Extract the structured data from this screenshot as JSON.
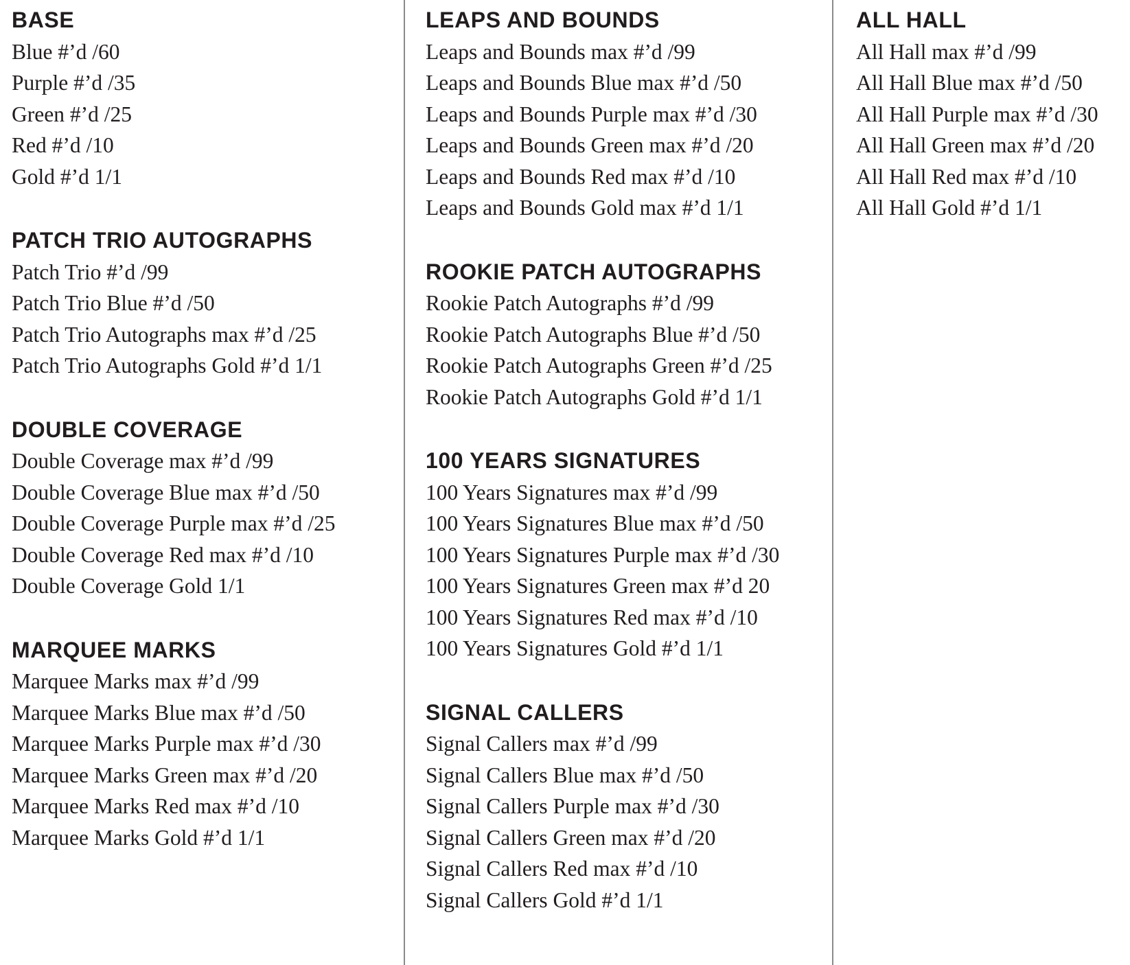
{
  "page": {
    "background": "#ffffff",
    "text_color": "#211d1e",
    "divider_color": "#8a8a8a"
  },
  "columns": [
    {
      "sections": [
        {
          "title": "BASE",
          "items": [
            "Blue #’d /60",
            "Purple #’d /35",
            "Green #’d /25",
            "Red #’d /10",
            "Gold #’d 1/1"
          ]
        },
        {
          "title": "PATCH TRIO AUTOGRAPHS",
          "items": [
            "Patch Trio #’d /99",
            "Patch Trio Blue #’d /50",
            "Patch Trio Autographs max #’d /25",
            "Patch Trio Autographs Gold #’d 1/1"
          ]
        },
        {
          "title": "DOUBLE COVERAGE",
          "items": [
            "Double Coverage max #’d /99",
            "Double Coverage Blue max #’d /50",
            "Double Coverage Purple max #’d /25",
            "Double Coverage Red max #’d /10",
            "Double Coverage Gold 1/1"
          ]
        },
        {
          "title": "MARQUEE MARKS",
          "items": [
            "Marquee Marks max #’d /99",
            "Marquee Marks Blue max #’d /50",
            "Marquee Marks Purple max #’d /30",
            "Marquee Marks Green max #’d /20",
            "Marquee Marks Red max #’d /10",
            "Marquee Marks Gold #’d 1/1"
          ]
        }
      ]
    },
    {
      "sections": [
        {
          "title": "LEAPS AND BOUNDS",
          "items": [
            "Leaps and Bounds max #’d /99",
            "Leaps and Bounds Blue max #’d /50",
            "Leaps and Bounds Purple max #’d /30",
            "Leaps and Bounds Green max #’d /20",
            "Leaps and Bounds Red max #’d /10",
            "Leaps and Bounds Gold max #’d 1/1"
          ]
        },
        {
          "title": "ROOKIE PATCH AUTOGRAPHS",
          "items": [
            "Rookie Patch Autographs #’d /99",
            "Rookie Patch Autographs Blue #’d /50",
            "Rookie Patch Autographs Green #’d /25",
            "Rookie Patch Autographs Gold #’d 1/1"
          ]
        },
        {
          "title": "100 YEARS SIGNATURES",
          "items": [
            "100 Years Signatures max #’d /99",
            "100 Years Signatures Blue max #’d /50",
            "100 Years Signatures Purple max #’d /30",
            "100 Years Signatures Green max #’d 20",
            "100 Years Signatures Red max #’d /10",
            "100 Years Signatures Gold #’d 1/1"
          ]
        },
        {
          "title": "SIGNAL CALLERS",
          "items": [
            "Signal Callers max #’d /99",
            "Signal Callers Blue max #’d /50",
            "Signal Callers Purple max #’d /30",
            "Signal Callers Green max #’d /20",
            "Signal Callers Red max #’d /10",
            "Signal Callers Gold #’d 1/1"
          ]
        }
      ]
    },
    {
      "sections": [
        {
          "title": "ALL HALL",
          "items": [
            "All Hall max #’d /99",
            "All Hall Blue max #’d /50",
            "All Hall Purple max #’d /30",
            "All Hall Green max #’d /20",
            "All Hall Red max #’d /10",
            "All Hall Gold #’d 1/1"
          ]
        }
      ]
    }
  ]
}
